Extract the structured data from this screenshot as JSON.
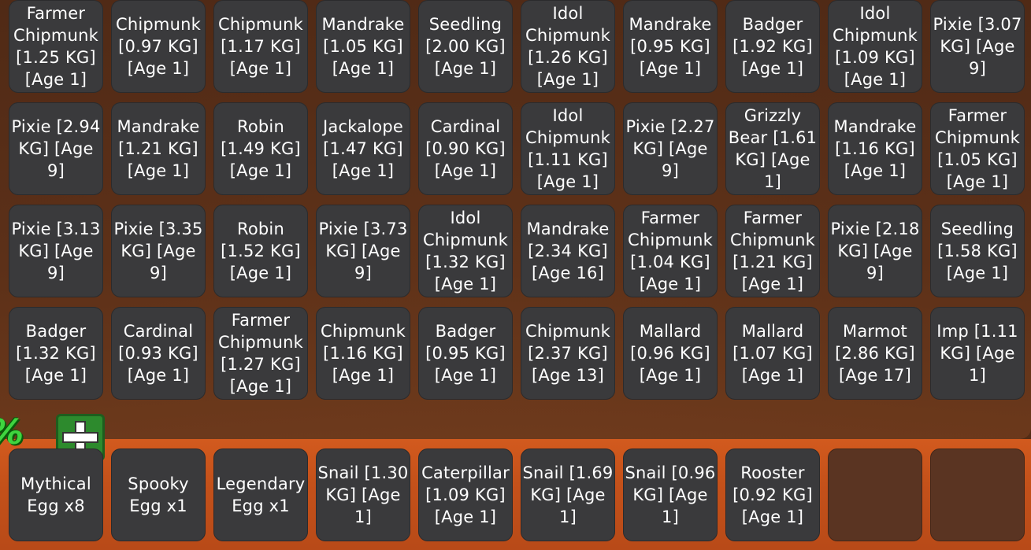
{
  "backpack": {
    "rows": [
      [
        "Farmer Chipmunk [1.25 KG] [Age 1]",
        "Chipmunk [0.97 KG] [Age 1]",
        "Chipmunk [1.17 KG] [Age 1]",
        "Mandrake [1.05 KG] [Age 1]",
        "Seedling [2.00 KG] [Age 1]",
        "Idol Chipmunk [1.26 KG] [Age 1]",
        "Mandrake [0.95 KG] [Age 1]",
        "Badger [1.92 KG] [Age 1]",
        "Idol Chipmunk [1.09 KG] [Age 1]",
        "Pixie [3.07 KG] [Age 9]"
      ],
      [
        "Pixie [2.94 KG] [Age 9]",
        "Mandrake [1.21 KG] [Age 1]",
        "Robin [1.49 KG] [Age 1]",
        "Jackalope [1.47 KG] [Age 1]",
        "Cardinal [0.90 KG] [Age 1]",
        "Idol Chipmunk [1.11 KG] [Age 1]",
        "Pixie [2.27 KG] [Age 9]",
        "Grizzly Bear [1.61 KG] [Age 1]",
        "Mandrake [1.16 KG] [Age 1]",
        "Farmer Chipmunk [1.05 KG] [Age 1]"
      ],
      [
        "Pixie [3.13 KG] [Age 9]",
        "Pixie [3.35 KG] [Age 9]",
        "Robin [1.52 KG] [Age 1]",
        "Pixie [3.73 KG] [Age 9]",
        "Idol Chipmunk [1.32 KG] [Age 1]",
        "Mandrake [2.34 KG] [Age 16]",
        "Farmer Chipmunk [1.04 KG] [Age 1]",
        "Farmer Chipmunk [1.21 KG] [Age 1]",
        "Pixie [2.18 KG] [Age 9]",
        "Seedling [1.58 KG] [Age 1]"
      ],
      [
        "Badger [1.32 KG] [Age 1]",
        "Cardinal [0.93 KG] [Age 1]",
        "Farmer Chipmunk [1.27 KG] [Age 1]",
        "Chipmunk [1.16 KG] [Age 1]",
        "Badger [0.95 KG] [Age 1]",
        "Chipmunk [2.37 KG] [Age 13]",
        "Mallard [0.96 KG] [Age 1]",
        "Mallard [1.07 KG] [Age 1]",
        "Marmot [2.86 KG] [Age 17]",
        "Imp [1.11 KG] [Age 1]"
      ]
    ]
  },
  "hotbar": {
    "percent_text": "%",
    "add_icon": "plus-icon",
    "slots": [
      "Mythical Egg x8",
      "Spooky Egg x1",
      "Legendary Egg x1",
      "Snail [1.30 KG] [Age 1]",
      "Caterpillar [1.09 KG] [Age 1]",
      "Snail [1.69 KG] [Age 1]",
      "Snail [0.96 KG] [Age 1]",
      "Rooster [0.92 KG] [Age 1]",
      "",
      ""
    ]
  },
  "colors": {
    "slot_bg": "#3a3a3c",
    "empty_slot_bg": "#5a3422",
    "hotbar_bg": "#c4511a",
    "accent_green": "#3fd43f",
    "text": "#ffffff"
  }
}
